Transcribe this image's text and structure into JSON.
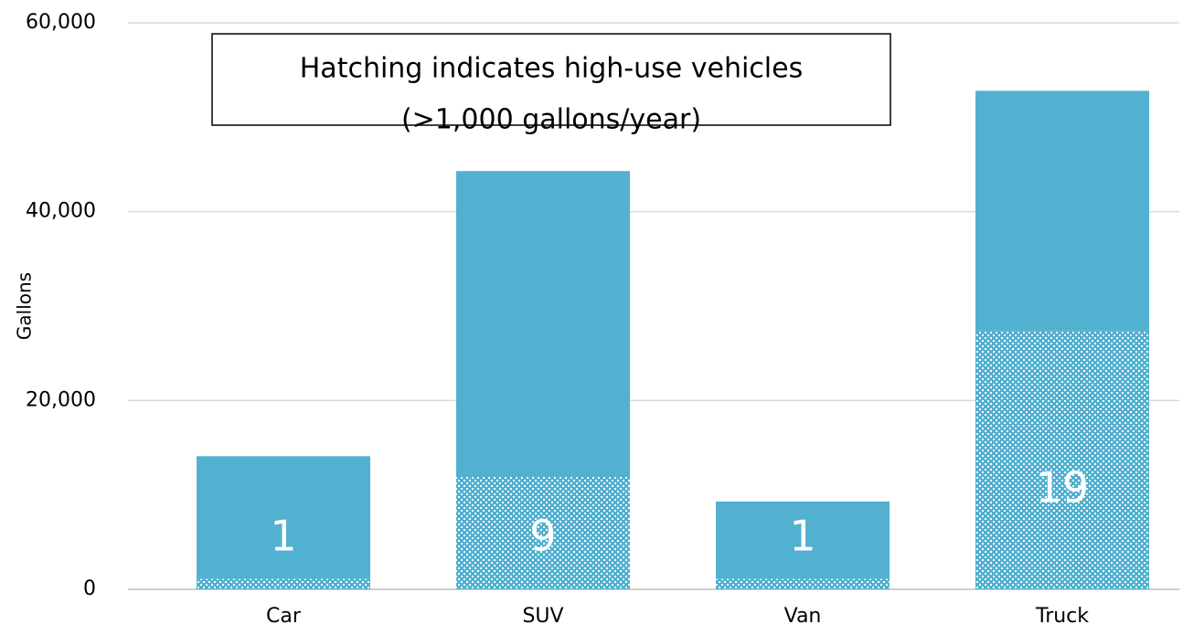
{
  "chart_data": {
    "type": "stacked_bar",
    "annotation": [
      "Hatching indicates high-use vehicles",
      "(>1,000 gallons/year)"
    ],
    "ylabel": "Gallons",
    "categories": [
      "Car",
      "SUV",
      "Van",
      "Truck"
    ],
    "series": [
      {
        "color": "#52b0d0",
        "hatch": true,
        "values": [
          1100,
          12000,
          1100,
          27400
        ]
      },
      {
        "color": "#52b0d0",
        "hatch": false,
        "values": [
          13000,
          32300,
          8200,
          25400
        ]
      }
    ],
    "data_labels": [
      1,
      9,
      1,
      19
    ],
    "ylim": [
      0,
      60000
    ],
    "yticks": [
      0,
      {
        "value": 20000,
        "label": "20,000"
      },
      {
        "value": 40000,
        "label": "40,000"
      },
      {
        "value": 60000,
        "label": "60,000"
      }
    ],
    "grid": true
  }
}
